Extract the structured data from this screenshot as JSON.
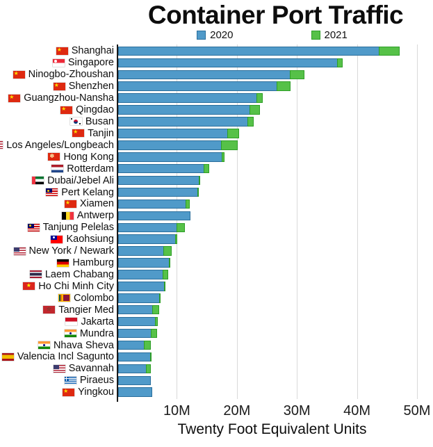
{
  "title": "Container Port Traffic",
  "legend": [
    {
      "label": "2020"
    },
    {
      "label": "2021"
    }
  ],
  "xlabel": "Twenty Foot Equivalent Units",
  "colors": {
    "bar_2020_fill": "#509AC9",
    "bar_2020_border": "#2A6E9C",
    "bar_2021_fill": "#56C148",
    "bar_2021_border": "#2E9E27",
    "gridline": "#D9D9D9",
    "axis_line": "#1A1A1A"
  },
  "chart_data": {
    "type": "bar",
    "orientation": "horizontal",
    "title": "Container Port Traffic",
    "xlabel": "Twenty Foot Equivalent Units",
    "unit": "TEU, millions",
    "series_names": [
      "2020",
      "2021"
    ],
    "x_ticks": [
      "10M",
      "20M",
      "30M",
      "40M",
      "50M"
    ],
    "xlim_millions": [
      0,
      51.5
    ],
    "legend_position": "top",
    "grid": "vertical-only",
    "note": "green segment shows 2021 growth stacked after 2020 value; no green when 2021 <= 2020",
    "ports": [
      {
        "name": "Shanghai",
        "flag": "china",
        "y2020": 43.5,
        "y2021": 47.0
      },
      {
        "name": "Singapore",
        "flag": "singapore",
        "y2020": 36.6,
        "y2021": 37.5
      },
      {
        "name": "Ninogbo-Zhoushan",
        "flag": "china",
        "y2020": 28.7,
        "y2021": 31.1
      },
      {
        "name": "Shenzhen",
        "flag": "china",
        "y2020": 26.5,
        "y2021": 28.8
      },
      {
        "name": "Guangzhou-Nansha",
        "flag": "china",
        "y2020": 23.2,
        "y2021": 24.2
      },
      {
        "name": "Qingdao",
        "flag": "china",
        "y2020": 22.0,
        "y2021": 23.7
      },
      {
        "name": "Busan",
        "flag": "south-korea",
        "y2020": 21.7,
        "y2021": 22.7
      },
      {
        "name": "Tanjin",
        "flag": "china",
        "y2020": 18.3,
        "y2021": 20.3
      },
      {
        "name": "Los Angeles/Longbeach",
        "flag": "usa",
        "y2020": 17.3,
        "y2021": 20.0
      },
      {
        "name": "Hong Kong",
        "flag": "hong-kong",
        "y2020": 17.4,
        "y2021": 17.8
      },
      {
        "name": "Rotterdam",
        "flag": "netherlands",
        "y2020": 14.3,
        "y2021": 15.3
      },
      {
        "name": "Dubai/Jebel Ali",
        "flag": "uae",
        "y2020": 13.5,
        "y2021": 13.7
      },
      {
        "name": "Pert Kelang",
        "flag": "malaysia",
        "y2020": 13.3,
        "y2021": 13.6
      },
      {
        "name": "Xiamen",
        "flag": "china",
        "y2020": 11.4,
        "y2021": 12.0
      },
      {
        "name": "Antwerp",
        "flag": "belgium",
        "y2020": 12.0,
        "y2021": 12.0
      },
      {
        "name": "Tanjung Pelelas",
        "flag": "malaysia",
        "y2020": 9.8,
        "y2021": 11.2
      },
      {
        "name": "Kaohsiung",
        "flag": "taiwan",
        "y2020": 9.6,
        "y2021": 9.9
      },
      {
        "name": "New York / Newark",
        "flag": "usa",
        "y2020": 7.6,
        "y2021": 9.0
      },
      {
        "name": "Hamburg",
        "flag": "germany",
        "y2020": 8.6,
        "y2021": 8.7
      },
      {
        "name": "Laem Chabang",
        "flag": "thailand",
        "y2020": 7.5,
        "y2021": 8.5
      },
      {
        "name": "Ho Chi Minh City",
        "flag": "vietnam",
        "y2020": 7.7,
        "y2021": 7.9
      },
      {
        "name": "Colombo",
        "flag": "sri-lanka",
        "y2020": 6.9,
        "y2021": 7.2
      },
      {
        "name": "Tangier Med",
        "flag": "morocco",
        "y2020": 5.8,
        "y2021": 7.0
      },
      {
        "name": "Jakarta",
        "flag": "indonesia",
        "y2020": 6.2,
        "y2021": 6.7
      },
      {
        "name": "Mundra",
        "flag": "india",
        "y2020": 5.6,
        "y2021": 6.6
      },
      {
        "name": "Nhava Sheva",
        "flag": "india",
        "y2020": 4.4,
        "y2021": 5.6
      },
      {
        "name": "Valencia Incl Sagunto",
        "flag": "spain",
        "y2020": 5.4,
        "y2021": 5.6
      },
      {
        "name": "Savannah",
        "flag": "usa",
        "y2020": 4.7,
        "y2021": 5.6
      },
      {
        "name": "Piraeus",
        "flag": "greece",
        "y2020": 5.4,
        "y2021": 5.4
      },
      {
        "name": "Yingkou",
        "flag": "china",
        "y2020": 5.7,
        "y2021": 5.7
      }
    ]
  }
}
